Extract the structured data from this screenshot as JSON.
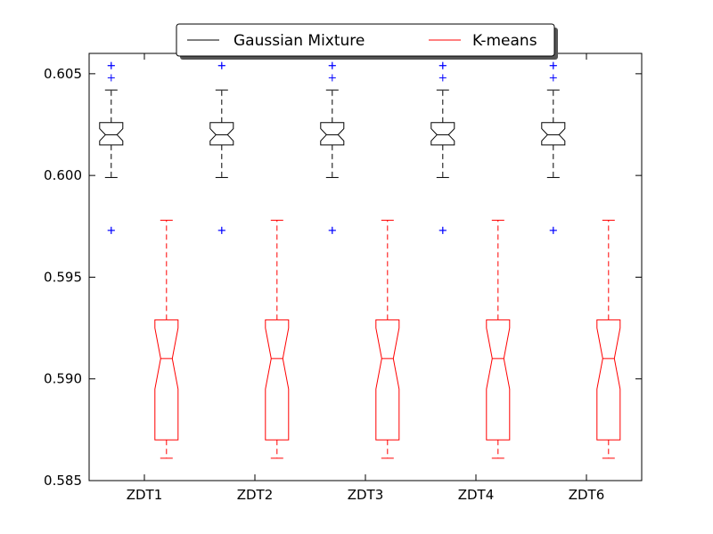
{
  "chart_data": {
    "type": "boxplot",
    "notched": true,
    "categories": [
      "ZDT1",
      "ZDT2",
      "ZDT3",
      "ZDT4",
      "ZDT6"
    ],
    "ylim": [
      0.585,
      0.606
    ],
    "yticks": [
      0.585,
      0.59,
      0.595,
      0.6,
      0.605
    ],
    "ytick_labels": [
      "0.585",
      "0.590",
      "0.595",
      "0.600",
      "0.605"
    ],
    "grid": false,
    "legend_position": "top-center",
    "series": [
      {
        "name": "Gaussian Mixture",
        "color": "#000000",
        "whisker_style": "dashed",
        "boxes": [
          {
            "whislo": 0.5999,
            "q1": 0.6015,
            "median": 0.602,
            "q3": 0.6026,
            "whishi": 0.6042,
            "notch_lo": 0.6017,
            "notch_hi": 0.6023,
            "fliers": [
              0.6054,
              0.6054,
              0.6048,
              0.5973,
              0.5973
            ]
          },
          {
            "whislo": 0.5999,
            "q1": 0.6015,
            "median": 0.602,
            "q3": 0.6026,
            "whishi": 0.6042,
            "notch_lo": 0.6017,
            "notch_hi": 0.6023,
            "fliers": [
              0.6054,
              0.6054,
              0.5973,
              0.5973
            ]
          },
          {
            "whislo": 0.5999,
            "q1": 0.6015,
            "median": 0.602,
            "q3": 0.6026,
            "whishi": 0.6042,
            "notch_lo": 0.6017,
            "notch_hi": 0.6023,
            "fliers": [
              0.6054,
              0.6054,
              0.6048,
              0.5973,
              0.5973
            ]
          },
          {
            "whislo": 0.5999,
            "q1": 0.6015,
            "median": 0.602,
            "q3": 0.6026,
            "whishi": 0.6042,
            "notch_lo": 0.6017,
            "notch_hi": 0.6023,
            "fliers": [
              0.6054,
              0.6054,
              0.6048,
              0.5973,
              0.5973
            ]
          },
          {
            "whislo": 0.5999,
            "q1": 0.6015,
            "median": 0.602,
            "q3": 0.6026,
            "whishi": 0.6042,
            "notch_lo": 0.6017,
            "notch_hi": 0.6023,
            "fliers": [
              0.6054,
              0.6054,
              0.6048,
              0.5973,
              0.5973
            ]
          }
        ]
      },
      {
        "name": "K-means",
        "color": "#ff0000",
        "whisker_style": "dashed",
        "boxes": [
          {
            "whislo": 0.5861,
            "q1": 0.587,
            "median": 0.591,
            "q3": 0.5929,
            "whishi": 0.5978,
            "notch_lo": 0.5895,
            "notch_hi": 0.5925
          },
          {
            "whislo": 0.5861,
            "q1": 0.587,
            "median": 0.591,
            "q3": 0.5929,
            "whishi": 0.5978,
            "notch_lo": 0.5895,
            "notch_hi": 0.5925
          },
          {
            "whislo": 0.5861,
            "q1": 0.587,
            "median": 0.591,
            "q3": 0.5929,
            "whishi": 0.5978,
            "notch_lo": 0.5895,
            "notch_hi": 0.5925
          },
          {
            "whislo": 0.5861,
            "q1": 0.587,
            "median": 0.591,
            "q3": 0.5929,
            "whishi": 0.5978,
            "notch_lo": 0.5895,
            "notch_hi": 0.5925
          },
          {
            "whislo": 0.5861,
            "q1": 0.587,
            "median": 0.591,
            "q3": 0.5929,
            "whishi": 0.5978,
            "notch_lo": 0.5895,
            "notch_hi": 0.5925
          }
        ]
      }
    ],
    "flier_color": "#0000ff",
    "flier_marker": "+"
  }
}
